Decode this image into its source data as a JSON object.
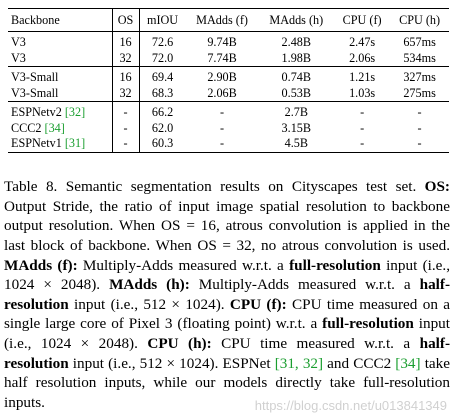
{
  "table": {
    "headers": [
      "Backbone",
      "OS",
      "mIOU",
      "MAdds (f)",
      "MAdds (h)",
      "CPU (f)",
      "CPU (h)"
    ],
    "groups": [
      {
        "rows": [
          {
            "backbone": "V3",
            "cite": "",
            "os": "16",
            "miou": "72.6",
            "madds_f": "9.74B",
            "madds_h": "2.48B",
            "cpu_f": "2.47s",
            "cpu_h": "657ms"
          },
          {
            "backbone": "V3",
            "cite": "",
            "os": "32",
            "miou": "72.0",
            "madds_f": "7.74B",
            "madds_h": "1.98B",
            "cpu_f": "2.06s",
            "cpu_h": "534ms"
          }
        ]
      },
      {
        "rows": [
          {
            "backbone": "V3-Small",
            "cite": "",
            "os": "16",
            "miou": "69.4",
            "madds_f": "2.90B",
            "madds_h": "0.74B",
            "cpu_f": "1.21s",
            "cpu_h": "327ms"
          },
          {
            "backbone": "V3-Small",
            "cite": "",
            "os": "32",
            "miou": "68.3",
            "madds_f": "2.06B",
            "madds_h": "0.53B",
            "cpu_f": "1.03s",
            "cpu_h": "275ms"
          }
        ]
      },
      {
        "rows": [
          {
            "backbone": "ESPNetv2",
            "cite": "[32]",
            "os": "-",
            "miou": "66.2",
            "madds_f": "-",
            "madds_h": "2.7B",
            "cpu_f": "-",
            "cpu_h": "-"
          },
          {
            "backbone": "CCC2",
            "cite": "[34]",
            "os": "-",
            "miou": "62.0",
            "madds_f": "-",
            "madds_h": "3.15B",
            "cpu_f": "-",
            "cpu_h": "-"
          },
          {
            "backbone": "ESPNetv1",
            "cite": "[31]",
            "os": "-",
            "miou": "60.3",
            "madds_f": "-",
            "madds_h": "4.5B",
            "cpu_f": "-",
            "cpu_h": "-"
          }
        ]
      }
    ]
  },
  "caption": {
    "label": "Table 8.",
    "s1": " Semantic segmentation results on Cityscapes test set. ",
    "os_b": "OS:",
    "s2": " Output Stride, the ratio of input image spatial resolution to backbone output resolution. When OS = 16, atrous convolution is applied in the last block of backbone. When OS = 32, no atrous convolution is used. ",
    "maddsf_b": "MAdds (f):",
    "s3": " Multiply-Adds measured w.r.t. a ",
    "fullres_b1": "full-resolution",
    "s4": " input (i.e., 1024 × 2048). ",
    "maddsh_b": "MAdds (h):",
    "s5": " Multiply-Adds measured w.r.t. a ",
    "halfres_b1": "half-resolution",
    "s6": " input (i.e., 512 × 1024). ",
    "cpuf_b": "CPU (f):",
    "s7": " CPU time measured on a single large core of Pixel 3 (floating point) w.r.t. a ",
    "fullres_b2": "full-resolution",
    "s8": " input (i.e., 1024 × 2048). ",
    "cpuh_b": "CPU (h):",
    "s9": " CPU time measured w.r.t. a ",
    "halfres_b2": "half-resolution",
    "s10": " input (i.e., 512 × 1024). ESPNet ",
    "cite_a": "[31, 32]",
    "s11": " and CCC2 ",
    "cite_b": "[34]",
    "s12": " take half resolution inputs, while our models directly take full-resolution inputs."
  },
  "watermark": "https://blog.csdn.net/u013841349",
  "colors": {
    "citation": "#1a9e2f"
  }
}
